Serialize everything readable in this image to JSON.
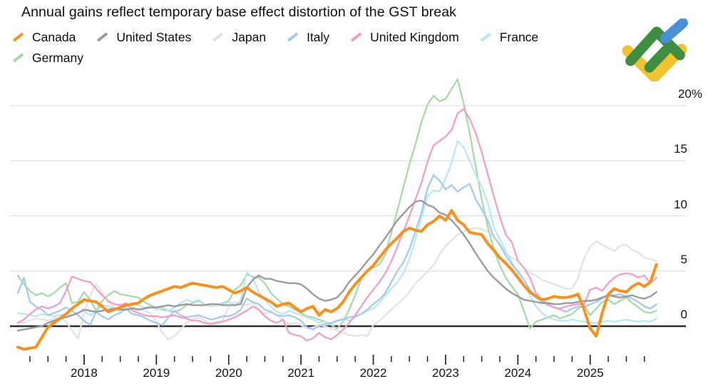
{
  "title": "Annual gains reflect temporary base effect distortion of the GST break",
  "legend": {
    "items": [
      {
        "label": "Canada",
        "color": "#F5921E"
      },
      {
        "label": "United States",
        "color": "#9B9B9B"
      },
      {
        "label": "Japan",
        "color": "#E2E2E2"
      },
      {
        "label": "Italy",
        "color": "#A3C7EE"
      },
      {
        "label": "United Kingdom",
        "color": "#F49AC6"
      },
      {
        "label": "France",
        "color": "#B5E8F2"
      },
      {
        "label": "Germany",
        "color": "#A3D9A4"
      }
    ]
  },
  "logo": {
    "green_color": "#3E8E41",
    "blue_color": "#4A90D9",
    "yellow_color": "#F0C330"
  },
  "chart_data": {
    "type": "line",
    "unit": "percent, year-over-year",
    "frequency": "monthly",
    "x_start": "2017-02",
    "x_end": "2025-12",
    "grid": true,
    "legend_position": "top",
    "y_axis": {
      "side": "right",
      "ylim": [
        -2.5,
        23
      ],
      "ticks": [
        {
          "label": "20%",
          "value": 20
        },
        {
          "label": "15",
          "value": 15
        },
        {
          "label": "10",
          "value": 10
        },
        {
          "label": "5",
          "value": 5
        },
        {
          "label": "0",
          "value": 0
        }
      ]
    },
    "x_axis": {
      "years": [
        "2018",
        "2019",
        "2020",
        "2021",
        "2022",
        "2023",
        "2024",
        "2025"
      ],
      "minor_ticks": "quarterly"
    },
    "series": [
      {
        "name": "Japan",
        "color": "#E2E2E2",
        "width": 2.2,
        "values": [
          0.3,
          0.3,
          0.5,
          0.7,
          0.6,
          0.5,
          0.7,
          0.8,
          0.4,
          -0.4,
          -1.1,
          1.2,
          2.8,
          3.8,
          3.0,
          2.2,
          1.7,
          1.3,
          1.5,
          1.7,
          1.6,
          1.4,
          1.2,
          0.4,
          -0.6,
          -1.2,
          -0.9,
          -0.3,
          0.3,
          0.6,
          0.8,
          0.5,
          0.3,
          0.4,
          0.5,
          1.8,
          2.2,
          2.0,
          1.9,
          2.1,
          1.5,
          1.1,
          1.3,
          1.0,
          0.6,
          0.2,
          0.3,
          0.1,
          -0.2,
          -0.1,
          0.1,
          0.0,
          -0.2,
          -0.4,
          -0.6,
          -0.8,
          -0.9,
          -0.8,
          -0.9,
          0.1,
          0.5,
          1.0,
          1.5,
          2.0,
          2.5,
          3.1,
          3.9,
          4.4,
          5.0,
          5.5,
          6.5,
          7.3,
          7.8,
          8.3,
          8.6,
          8.8,
          8.9,
          8.8,
          8.6,
          8.1,
          7.4,
          6.6,
          6.2,
          5.9,
          5.3,
          4.8,
          4.6,
          4.2,
          4.0,
          3.8,
          3.6,
          3.4,
          3.4,
          4.4,
          6.2,
          7.2,
          7.7,
          7.4,
          7.1,
          6.8,
          7.3,
          7.4,
          6.9,
          6.7,
          6.2,
          6.1,
          5.9
        ]
      },
      {
        "name": "Germany",
        "color": "#A3D9A4",
        "width": 2.2,
        "values": [
          4.6,
          3.8,
          3.2,
          2.8,
          3.0,
          2.7,
          3.0,
          3.5,
          3.9,
          2.1,
          2.2,
          3.1,
          2.4,
          1.4,
          2.3,
          2.8,
          3.2,
          2.9,
          2.8,
          2.7,
          2.6,
          2.2,
          1.9,
          1.7,
          1.5,
          1.4,
          1.3,
          1.5,
          1.9,
          2.1,
          2.3,
          2.0,
          1.8,
          1.9,
          2.1,
          2.3,
          3.3,
          3.7,
          4.7,
          4.5,
          4.4,
          3.9,
          3.0,
          2.5,
          2.0,
          1.8,
          1.5,
          1.2,
          0.9,
          0.8,
          0.6,
          0.4,
          0.1,
          -0.2,
          0.4,
          1.5,
          2.8,
          4.3,
          5.1,
          5.3,
          5.6,
          6.5,
          8.5,
          10.5,
          12.6,
          14.7,
          16.5,
          18.5,
          20.1,
          20.9,
          20.4,
          20.6,
          21.5,
          22.4,
          20.2,
          17.5,
          14.5,
          11.5,
          9.0,
          7.0,
          5.5,
          4.4,
          3.6,
          2.9,
          1.4,
          -0.2,
          0.4,
          0.6,
          0.8,
          1.0,
          0.7,
          0.9,
          1.1,
          1.6,
          1.9,
          1.0,
          1.6,
          2.2,
          2.4,
          2.0,
          2.3,
          2.6,
          2.1,
          1.7,
          1.3,
          1.2,
          1.4
        ]
      },
      {
        "name": "France",
        "color": "#B5E8F2",
        "width": 2.2,
        "values": [
          1.2,
          1.1,
          1.0,
          0.9,
          1.1,
          1.0,
          0.9,
          1.0,
          1.1,
          1.0,
          1.2,
          1.4,
          1.0,
          1.3,
          1.9,
          1.8,
          1.6,
          1.4,
          1.8,
          2.1,
          1.9,
          1.7,
          1.8,
          1.5,
          1.7,
          1.4,
          1.7,
          2.1,
          2.4,
          2.2,
          2.4,
          2.0,
          1.8,
          1.9,
          2.0,
          2.2,
          1.9,
          2.3,
          4.9,
          4.4,
          3.1,
          2.4,
          1.8,
          1.3,
          1.1,
          1.4,
          1.2,
          1.0,
          0.8,
          0.6,
          0.3,
          0.4,
          0.2,
          0.5,
          0.7,
          0.5,
          0.8,
          1.1,
          1.4,
          1.6,
          2.1,
          2.8,
          3.4,
          4.0,
          4.8,
          6.1,
          7.9,
          9.8,
          11.8,
          12.3,
          12.2,
          13.4,
          14.8,
          16.8,
          16.2,
          15.0,
          13.7,
          12.7,
          11.2,
          9.0,
          7.9,
          6.8,
          5.8,
          4.7,
          3.8,
          2.8,
          1.8,
          1.2,
          0.8,
          0.6,
          0.5,
          0.5,
          0.6,
          0.5,
          0.4,
          0.3,
          0.3,
          0.4,
          0.5,
          0.4,
          0.5,
          0.6,
          0.5,
          0.4,
          0.5,
          0.4,
          0.7
        ]
      },
      {
        "name": "Italy",
        "color": "#A3C7EE",
        "width": 2.2,
        "values": [
          3.0,
          4.4,
          2.2,
          1.8,
          1.5,
          1.0,
          1.2,
          1.4,
          1.7,
          1.4,
          1.0,
          0.5,
          0.1,
          1.3,
          0.9,
          0.6,
          1.0,
          1.2,
          1.6,
          1.1,
          1.0,
          0.8,
          0.5,
          0.3,
          0.1,
          0.8,
          1.4,
          1.0,
          0.8,
          0.9,
          1.0,
          0.8,
          0.6,
          0.7,
          0.9,
          0.9,
          1.1,
          1.5,
          2.5,
          2.2,
          2.0,
          1.5,
          1.3,
          1.0,
          0.9,
          1.0,
          0.8,
          0.5,
          -0.1,
          -0.3,
          0.0,
          0.2,
          0.3,
          0.5,
          0.6,
          0.8,
          0.9,
          1.1,
          1.5,
          2.0,
          2.4,
          3.0,
          4.0,
          5.0,
          5.8,
          7.0,
          8.6,
          10.3,
          12.5,
          13.7,
          13.2,
          12.4,
          12.8,
          12.2,
          12.6,
          12.9,
          11.5,
          10.6,
          9.6,
          8.1,
          7.4,
          6.4,
          5.6,
          5.0,
          4.2,
          3.3,
          2.6,
          2.2,
          1.9,
          1.7,
          1.5,
          1.3,
          1.6,
          1.8,
          1.7,
          2.0,
          2.2,
          2.5,
          2.9,
          2.8,
          2.9,
          2.7,
          2.5,
          2.2,
          1.8,
          1.6,
          2.0
        ]
      },
      {
        "name": "United Kingdom",
        "color": "#F49AC6",
        "width": 2.2,
        "values": [
          0.3,
          0.6,
          1.1,
          1.5,
          1.8,
          1.6,
          1.8,
          2.1,
          3.2,
          4.5,
          4.3,
          4.1,
          4.0,
          3.4,
          2.8,
          2.3,
          2.0,
          1.9,
          2.1,
          1.4,
          1.2,
          1.0,
          0.9,
          0.9,
          0.8,
          0.9,
          1.0,
          0.8,
          0.7,
          0.5,
          0.5,
          0.3,
          0.2,
          0.3,
          0.4,
          0.6,
          0.8,
          1.1,
          1.4,
          1.8,
          1.5,
          0.9,
          0.5,
          0.3,
          0.6,
          -0.6,
          -0.8,
          -0.9,
          -1.3,
          -1.1,
          -0.6,
          -1.0,
          -1.2,
          -0.8,
          -0.3,
          0.3,
          1.0,
          1.8,
          2.6,
          3.3,
          4.0,
          4.8,
          5.9,
          7.2,
          8.6,
          10.0,
          11.5,
          13.0,
          14.9,
          16.4,
          16.8,
          17.2,
          17.8,
          19.3,
          19.7,
          18.8,
          17.5,
          15.8,
          13.8,
          11.8,
          9.9,
          8.3,
          7.6,
          5.9,
          5.3,
          4.4,
          3.0,
          2.4,
          2.0,
          1.7,
          1.6,
          1.8,
          1.9,
          2.0,
          2.0,
          3.3,
          3.5,
          3.2,
          3.9,
          4.4,
          4.7,
          4.8,
          4.7,
          4.4,
          4.6,
          3.9,
          4.4
        ]
      },
      {
        "name": "United States",
        "color": "#9B9B9B",
        "width": 2.4,
        "values": [
          -0.4,
          -0.3,
          -0.2,
          -0.1,
          0.0,
          0.3,
          0.5,
          0.7,
          0.8,
          1.0,
          1.2,
          1.5,
          1.4,
          1.3,
          1.4,
          1.5,
          1.6,
          1.5,
          1.5,
          1.6,
          1.5,
          1.6,
          1.7,
          1.7,
          1.8,
          1.9,
          1.8,
          1.9,
          2.0,
          1.9,
          1.9,
          1.9,
          2.0,
          2.0,
          1.9,
          1.9,
          1.9,
          2.0,
          3.5,
          4.2,
          4.6,
          4.3,
          4.3,
          4.1,
          4.0,
          3.9,
          3.9,
          3.8,
          3.4,
          2.9,
          2.5,
          2.3,
          2.4,
          2.6,
          3.2,
          4.0,
          4.6,
          5.2,
          5.9,
          6.5,
          7.3,
          8.0,
          8.8,
          9.6,
          10.2,
          10.8,
          11.3,
          11.4,
          11.0,
          10.8,
          10.3,
          10.1,
          9.6,
          9.0,
          8.3,
          7.5,
          6.6,
          5.8,
          5.0,
          4.4,
          3.9,
          3.4,
          3.0,
          2.7,
          2.4,
          2.3,
          2.2,
          2.1,
          2.1,
          2.0,
          2.0,
          2.1,
          2.1,
          2.2,
          2.3,
          2.3,
          2.4,
          2.6,
          2.8,
          2.7,
          2.6,
          2.7,
          2.8,
          2.6,
          2.5,
          2.7,
          3.1
        ]
      },
      {
        "name": "Canada",
        "color": "#F5921E",
        "width": 4,
        "values": [
          -1.9,
          -2.1,
          -2.0,
          -1.9,
          -1.0,
          -0.1,
          0.3,
          0.7,
          1.1,
          1.6,
          2.0,
          2.4,
          2.3,
          2.2,
          1.8,
          1.3,
          1.5,
          1.7,
          1.9,
          2.0,
          2.1,
          2.5,
          2.8,
          3.0,
          3.2,
          3.4,
          3.6,
          3.5,
          3.7,
          3.9,
          3.8,
          3.7,
          3.6,
          3.5,
          3.6,
          3.3,
          3.0,
          3.2,
          3.5,
          3.1,
          2.8,
          2.5,
          2.2,
          1.8,
          2.0,
          2.1,
          1.7,
          1.3,
          1.6,
          1.8,
          1.0,
          1.5,
          1.3,
          1.6,
          2.2,
          3.1,
          3.8,
          4.4,
          5.0,
          5.5,
          6.2,
          6.9,
          7.5,
          8.0,
          8.6,
          8.9,
          8.7,
          8.6,
          9.2,
          9.5,
          10.0,
          9.6,
          10.5,
          9.6,
          9.2,
          8.5,
          8.4,
          8.3,
          7.5,
          6.9,
          6.2,
          5.7,
          5.1,
          4.4,
          3.7,
          3.1,
          2.7,
          2.4,
          2.5,
          2.7,
          2.6,
          2.6,
          2.7,
          2.9,
          1.5,
          -0.2,
          -0.9,
          1.2,
          2.9,
          3.4,
          3.2,
          3.1,
          3.6,
          3.9,
          3.6,
          4.0,
          5.6
        ]
      }
    ]
  }
}
